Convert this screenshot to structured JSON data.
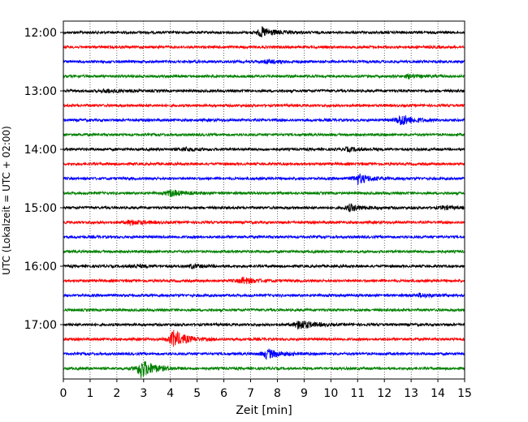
{
  "chart_data": {
    "type": "line",
    "xlabel": "Zeit  [min]",
    "ylabel": "UTC (Lokalzeit = UTC + 02:00)",
    "xlim": [
      0,
      15
    ],
    "x_ticks": [
      0,
      1,
      2,
      3,
      4,
      5,
      6,
      7,
      8,
      9,
      10,
      11,
      12,
      13,
      14,
      15
    ],
    "x_grid": "dotted vertical",
    "y_ticks": [
      "12:00",
      "13:00",
      "14:00",
      "15:00",
      "16:00",
      "17:00"
    ],
    "trace_interval_min": 15,
    "trace_start": "12:00",
    "trace_count": 24,
    "series_colors": [
      "#000000",
      "#ff0000",
      "#0000ff",
      "#008000"
    ],
    "traces": [
      {
        "start": "12:00",
        "color": "#000000",
        "events": [
          {
            "t": 7.4,
            "amp": 6
          }
        ]
      },
      {
        "start": "12:15",
        "color": "#ff0000",
        "events": []
      },
      {
        "start": "12:30",
        "color": "#0000ff",
        "events": [
          {
            "t": 7.6,
            "amp": 2
          }
        ]
      },
      {
        "start": "12:45",
        "color": "#008000",
        "events": [
          {
            "t": 12.9,
            "amp": 2
          }
        ]
      },
      {
        "start": "13:00",
        "color": "#000000",
        "events": [
          {
            "t": 1.6,
            "amp": 2
          }
        ]
      },
      {
        "start": "13:15",
        "color": "#ff0000",
        "events": []
      },
      {
        "start": "13:30",
        "color": "#0000ff",
        "events": [
          {
            "t": 12.6,
            "amp": 7
          }
        ]
      },
      {
        "start": "13:45",
        "color": "#008000",
        "events": []
      },
      {
        "start": "14:00",
        "color": "#000000",
        "events": [
          {
            "t": 4.5,
            "amp": 2
          },
          {
            "t": 10.6,
            "amp": 2
          }
        ]
      },
      {
        "start": "14:15",
        "color": "#ff0000",
        "events": []
      },
      {
        "start": "14:30",
        "color": "#0000ff",
        "events": [
          {
            "t": 11.0,
            "amp": 6
          }
        ]
      },
      {
        "start": "14:45",
        "color": "#008000",
        "events": [
          {
            "t": 4.0,
            "amp": 4
          }
        ]
      },
      {
        "start": "15:00",
        "color": "#000000",
        "events": [
          {
            "t": 10.7,
            "amp": 4
          },
          {
            "t": 14.2,
            "amp": 2
          }
        ]
      },
      {
        "start": "15:15",
        "color": "#ff0000",
        "events": [
          {
            "t": 2.5,
            "amp": 3
          }
        ]
      },
      {
        "start": "15:30",
        "color": "#0000ff",
        "events": []
      },
      {
        "start": "15:45",
        "color": "#008000",
        "events": []
      },
      {
        "start": "16:00",
        "color": "#000000",
        "events": [
          {
            "t": 4.8,
            "amp": 2
          },
          {
            "t": 2.6,
            "amp": 2
          }
        ]
      },
      {
        "start": "16:15",
        "color": "#ff0000",
        "events": [
          {
            "t": 6.7,
            "amp": 4
          }
        ]
      },
      {
        "start": "16:30",
        "color": "#0000ff",
        "events": [
          {
            "t": 13.3,
            "amp": 2
          }
        ]
      },
      {
        "start": "16:45",
        "color": "#008000",
        "events": []
      },
      {
        "start": "17:00",
        "color": "#000000",
        "events": [
          {
            "t": 8.8,
            "amp": 6
          }
        ]
      },
      {
        "start": "17:15",
        "color": "#ff0000",
        "events": [
          {
            "t": 4.1,
            "amp": 11
          }
        ]
      },
      {
        "start": "17:30",
        "color": "#0000ff",
        "events": [
          {
            "t": 7.6,
            "amp": 6
          }
        ]
      },
      {
        "start": "17:45",
        "color": "#008000",
        "events": [
          {
            "t": 2.9,
            "amp": 12
          }
        ]
      }
    ]
  }
}
